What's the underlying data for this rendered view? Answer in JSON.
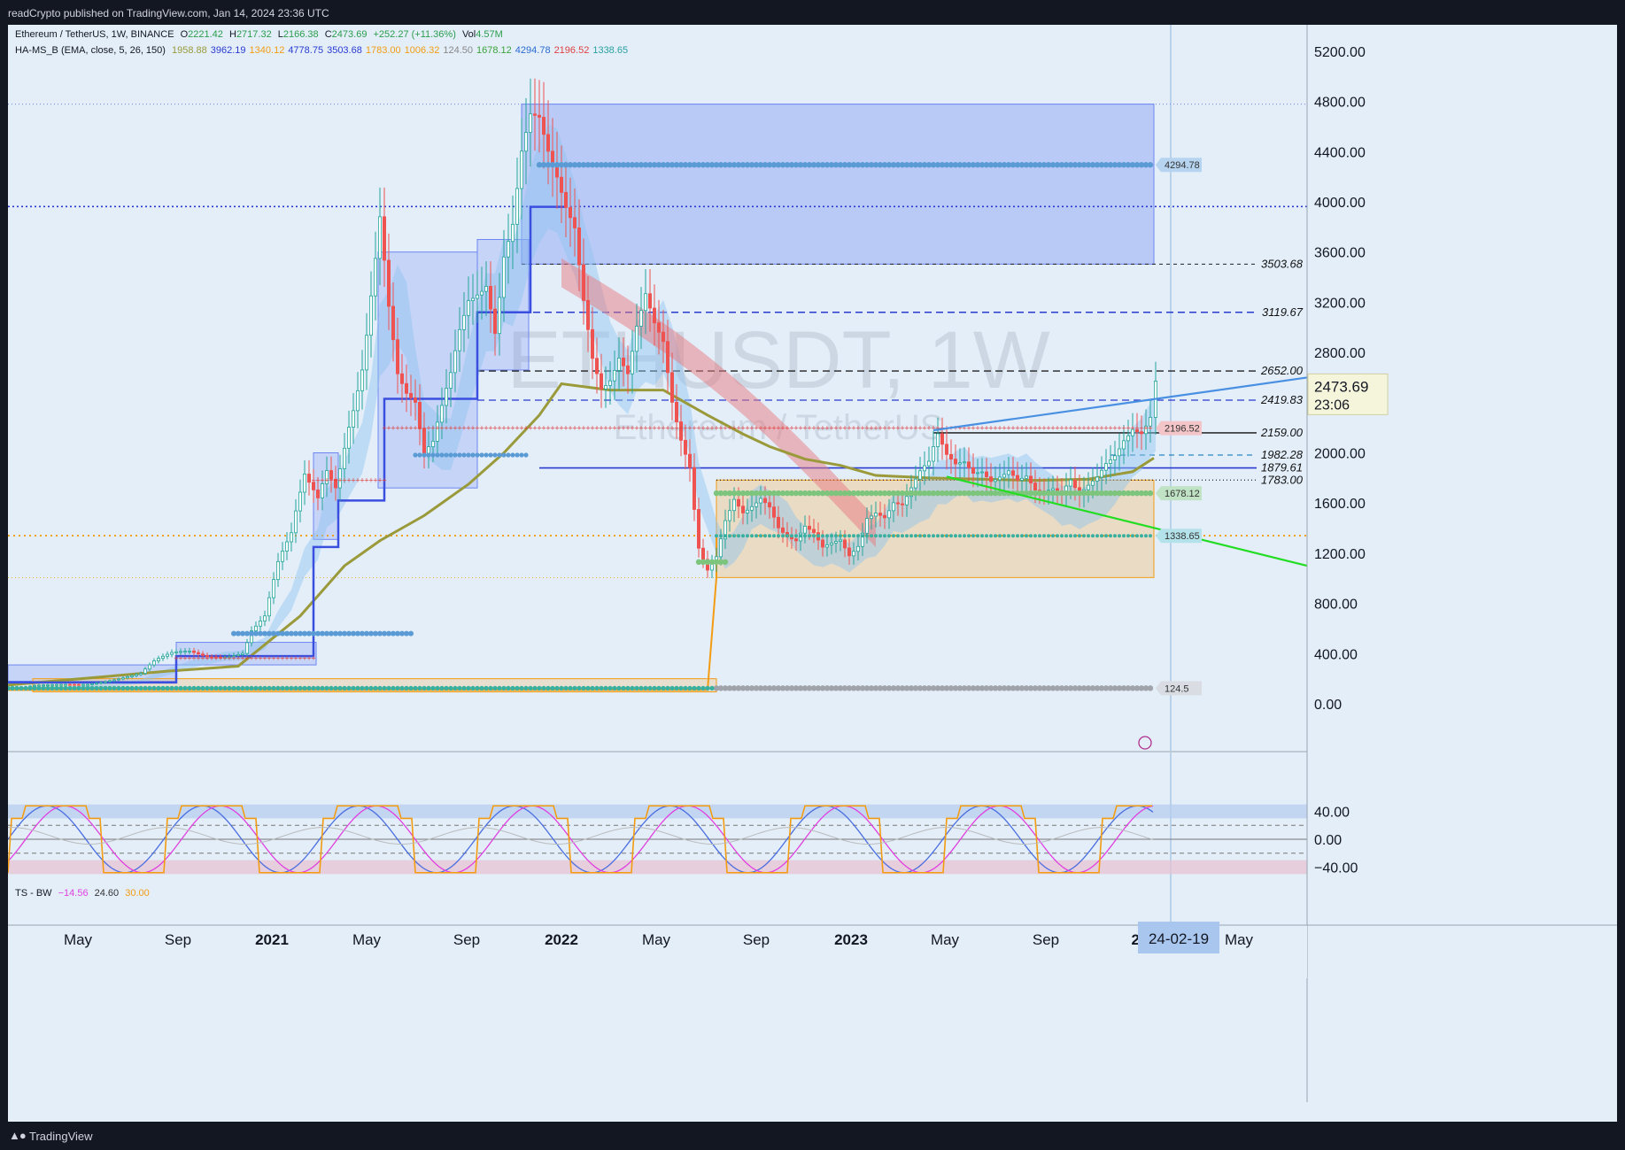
{
  "header": {
    "published": "readCrypto published on TradingView.com, Jan 14, 2024 23:36 UTC"
  },
  "footer": {
    "brand": "TradingView",
    "logo": "tradingview-logo-icon"
  },
  "legend_main": {
    "symbol": "Ethereum / TetherUS, 1W, BINANCE",
    "o_label": "O",
    "o": "2221.42",
    "h_label": "H",
    "h": "2717.32",
    "l_label": "L",
    "l": "2166.38",
    "c_label": "C",
    "c": "2473.69",
    "change": "+252.27 (+11.36%)",
    "vol_label": "Vol",
    "vol": "4.57M"
  },
  "legend_indicator": {
    "name": "HA-MS_B (EMA, close, 5, 26, 150)",
    "values": [
      {
        "v": "1958.88",
        "color": "#9a9a3a"
      },
      {
        "v": "3962.19",
        "color": "#2a3ad0"
      },
      {
        "v": "1340.12",
        "color": "#f39c12"
      },
      {
        "v": "4778.75",
        "color": "#2a3ad0"
      },
      {
        "v": "3503.68",
        "color": "#2a3ad0"
      },
      {
        "v": "1783.00",
        "color": "#f39c12"
      },
      {
        "v": "1006.32",
        "color": "#f39c12"
      },
      {
        "v": "124.50",
        "color": "#888888"
      },
      {
        "v": "1678.12",
        "color": "#3aa23a"
      },
      {
        "v": "4294.78",
        "color": "#2a6ad0"
      },
      {
        "v": "2196.52",
        "color": "#e04040"
      },
      {
        "v": "1338.65",
        "color": "#2aa0a0"
      }
    ]
  },
  "legend_osc": {
    "name": "TS - BW",
    "v1": "−14.56",
    "v1_color": "#e040e0",
    "v2": "24.60",
    "v2_color": "#333333",
    "v3": "30.00",
    "v3_color": "#f39c12"
  },
  "watermark": {
    "line1": "ETHUSDT, 1W",
    "line2": "Ethereum / TetherUS"
  },
  "current_price": {
    "value": "2473.69",
    "countdown": "23:06"
  },
  "level_labels": [
    {
      "text": "3503.68",
      "price": 3503.68
    },
    {
      "text": "3119.67",
      "price": 3119.67
    },
    {
      "text": "2652.00",
      "price": 2652.0
    },
    {
      "text": "2419.83",
      "price": 2419.83
    },
    {
      "text": "2159.00",
      "price": 2159.0
    },
    {
      "text": "1982.28",
      "price": 1982.28
    },
    {
      "text": "1879.61",
      "price": 1879.61
    },
    {
      "text": "1783.00",
      "price": 1783.0
    }
  ],
  "badges": [
    {
      "text": "4294.78",
      "price": 4294.78,
      "color": "#b6d4ef"
    },
    {
      "text": "2196.52",
      "price": 2196.52,
      "color": "#f3c4c8"
    },
    {
      "text": "1678.12",
      "price": 1678.12,
      "color": "#bfe3c4"
    },
    {
      "text": "1338.65",
      "price": 1338.65,
      "color": "#b4e2ea"
    },
    {
      "text": "124.5",
      "price": 124.5,
      "color": "#d9dde3"
    }
  ],
  "cursor_date": "24-02-19",
  "chart_data": [
    {
      "type": "candlestick",
      "title": "Ethereum / TetherUS, 1W, BINANCE",
      "ylim": [
        0,
        5200
      ],
      "y_ticks": [
        "5200.00",
        "4800.00",
        "4400.00",
        "4000.00",
        "3600.00",
        "3200.00",
        "2800.00",
        "2400.00",
        "2000.00",
        "1600.00",
        "1200.00",
        "800.00",
        "400.00",
        "0.00"
      ],
      "x_ticks": [
        "May",
        "Sep",
        "2021",
        "May",
        "Sep",
        "2022",
        "May",
        "Sep",
        "2023",
        "May",
        "Sep",
        "20",
        "May"
      ],
      "grid": false,
      "weekly_closes_approx": [
        {
          "x": "2020-03",
          "close": 130
        },
        {
          "x": "2020-05",
          "close": 200
        },
        {
          "x": "2020-08",
          "close": 390
        },
        {
          "x": "2020-10",
          "close": 380
        },
        {
          "x": "2021-01",
          "close": 1300
        },
        {
          "x": "2021-02",
          "close": 1900
        },
        {
          "x": "2021-05",
          "close": 3900
        },
        {
          "x": "2021-06",
          "close": 2000
        },
        {
          "x": "2021-07",
          "close": 2000
        },
        {
          "x": "2021-09",
          "close": 3400
        },
        {
          "x": "2021-11",
          "close": 4600
        },
        {
          "x": "2022-01",
          "close": 2500
        },
        {
          "x": "2022-04",
          "close": 3000
        },
        {
          "x": "2022-06",
          "close": 1100
        },
        {
          "x": "2022-08",
          "close": 1700
        },
        {
          "x": "2022-11",
          "close": 1200
        },
        {
          "x": "2023-01",
          "close": 1600
        },
        {
          "x": "2023-04",
          "close": 2000
        },
        {
          "x": "2023-06",
          "close": 1800
        },
        {
          "x": "2023-10",
          "close": 1600
        },
        {
          "x": "2023-12",
          "close": 2300
        },
        {
          "x": "2024-01",
          "close": 2473.69
        }
      ],
      "horizontal_levels": [
        4778.75,
        4294.78,
        3962.19,
        3503.68,
        3119.67,
        2652.0,
        2419.83,
        2196.52,
        2159.0,
        1982.28,
        1879.61,
        1783.0,
        1678.12,
        1338.65,
        1006.32,
        124.5
      ],
      "trend_lines": [
        {
          "from": {
            "x": "2023-04",
            "y": 2180
          },
          "to": {
            "x": "2024-03",
            "y": 2600
          },
          "color": "#4a90e2"
        },
        {
          "from": {
            "x": "2023-06",
            "y": 1780
          },
          "to": {
            "x": "2024-03",
            "y": 1100
          },
          "color": "#22dd22"
        }
      ]
    },
    {
      "type": "line",
      "title": "TS - BW",
      "ylim": [
        -50,
        50
      ],
      "y_ticks": [
        "40.00",
        "0.00",
        "−40.00"
      ],
      "series_values_last": {
        "magenta": -14.56,
        "dark": 24.6,
        "orange": 30.0
      }
    }
  ]
}
